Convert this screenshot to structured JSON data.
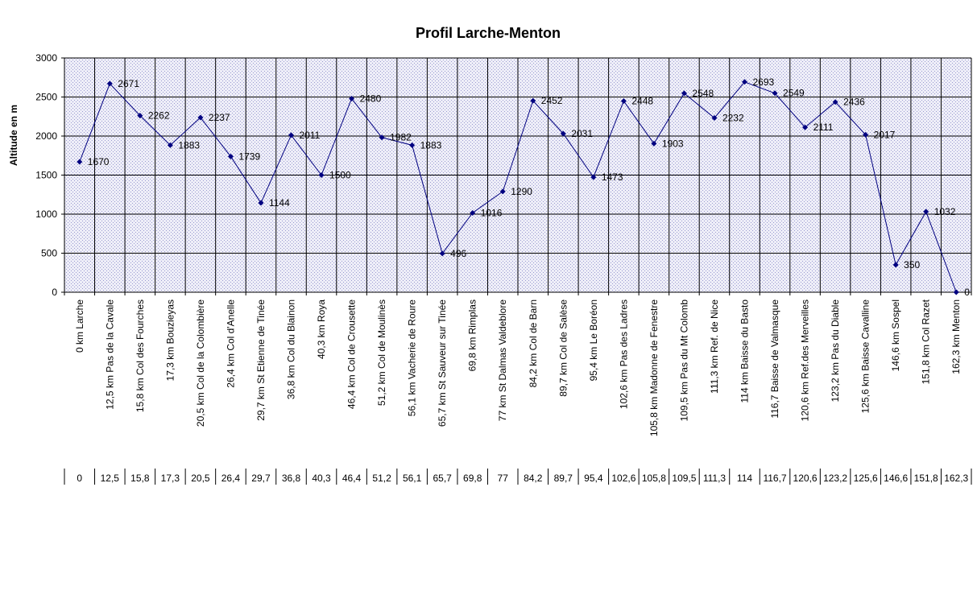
{
  "chart_data": {
    "type": "line",
    "title": "Profil Larche-Menton",
    "ylabel": "Altitude en m",
    "ylim": [
      0,
      3000
    ],
    "yticks": [
      "0",
      "500",
      "1000",
      "1500",
      "2000",
      "2500",
      "3000"
    ],
    "grid": true,
    "legend": "none",
    "colors": {
      "series": "#000080",
      "plot_background": "#E4E4F2",
      "grid": "#000000"
    },
    "categories": [
      "0 km Larche",
      "12,5 km Pas de la Cavale",
      "15,8 km Col des Fourches",
      "17,3 km Bouzieyas",
      "20,5 km Col de la Colombière",
      "26,4 km Col d'Anelle",
      "29,7 km St Etienne de Tinée",
      "36,8 km Col du Blainon",
      "40,3 km Roya",
      "46,4 km Col de Crousette",
      "51,2 km Col de Moulinès",
      "56,1 km Vacherie de Roure",
      "65,7 km St Sauveur sur Tinée",
      "69,8 km Rimplas",
      "77 km St Dalmas Valdeblore",
      "84,2 km Col de Barn",
      "89,7 km Col de Salèse",
      "95,4 km Le Boréon",
      "102,6 km Pas des Ladres",
      "105,8 km Madonne de Fenestre",
      "109,5 km Pas du Mt Colomb",
      "111,3 km Ref. de Nice",
      "114 km Baisse du Basto",
      "116,7 Baisse de Valmasque",
      "120,6 km Ref.des Merveilles",
      "123,2 km Pas du Diable",
      "125,6 km Baisse Cavalline",
      "146,6 km Sospel",
      "151,8 km Col Razet",
      "162,3 km Menton"
    ],
    "km": [
      "0",
      "12,5",
      "15,8",
      "17,3",
      "20,5",
      "26,4",
      "29,7",
      "36,8",
      "40,3",
      "46,4",
      "51,2",
      "56,1",
      "65,7",
      "69,8",
      "77",
      "84,2",
      "89,7",
      "95,4",
      "102,6",
      "105,8",
      "109,5",
      "111,3",
      "114",
      "116,7",
      "120,6",
      "123,2",
      "125,6",
      "146,6",
      "151,8",
      "162,3"
    ],
    "values": [
      1670,
      2671,
      2262,
      1883,
      2237,
      1739,
      1144,
      2011,
      1500,
      2480,
      1982,
      1883,
      496,
      1016,
      1290,
      2452,
      2031,
      1473,
      2448,
      1903,
      2548,
      2232,
      2693,
      2549,
      2111,
      2436,
      2017,
      350,
      1032,
      0
    ],
    "value_labels": [
      "1670",
      "2671",
      "2262",
      "1883",
      "2237",
      "1739",
      "1144",
      "2011",
      "1500",
      "2480",
      "1982",
      "1883",
      "496",
      "1016",
      "1290",
      "2452",
      "2031",
      "1473",
      "2448",
      "1903",
      "2548",
      "2232",
      "2693",
      "2549",
      "2111",
      "2436",
      "2017",
      "350",
      "1032",
      "0"
    ]
  }
}
